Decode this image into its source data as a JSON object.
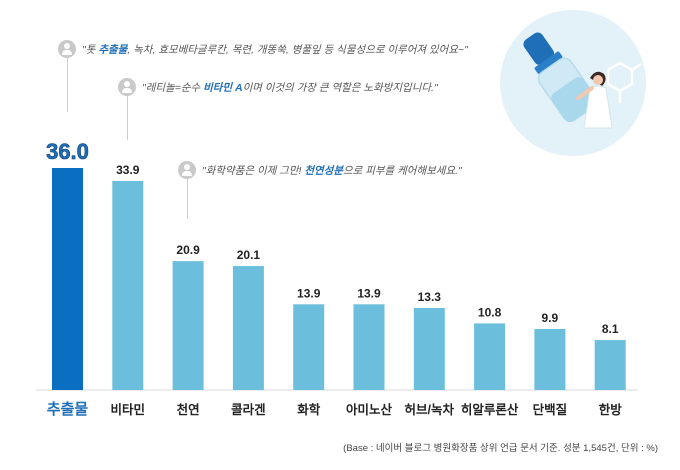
{
  "quotes": [
    {
      "pre": "\"톳 ",
      "highlight": "추출물",
      "post": ", 녹차, 효모베타글루칸, 목련, 개똥쑥, 병풀잎 등 식물성으로 이루어져 있어요~\""
    },
    {
      "pre": "\"레티놀=순수 ",
      "highlight": "비타민 A",
      "post": "이며 이것의 가장 큰 역할은 노화방지입니다.\""
    },
    {
      "pre": "\"화학약품은 이제 그만! ",
      "highlight": "천연성분",
      "post": "으로 피부를 케어해보세요.\""
    }
  ],
  "footnote": "(Base : 네이버 블로그 병원화장품 상위 언급 문서 기준. 성분 1,545건, 단위 : %)",
  "colors": {
    "highlight_bar": "#0b6fc1",
    "bar": "#6cbfdc",
    "highlight_text": "#1f6fb8"
  },
  "chart_data": {
    "type": "bar",
    "categories": [
      "추출물",
      "비타민",
      "천연",
      "콜라겐",
      "화학",
      "아미노산",
      "허브/녹차",
      "히알루론산",
      "단백질",
      "한방"
    ],
    "values": [
      36.0,
      33.9,
      20.9,
      20.1,
      13.9,
      13.9,
      13.3,
      10.8,
      9.9,
      8.1
    ],
    "value_labels": [
      "36.0",
      "33.9",
      "20.9",
      "20.1",
      "13.9",
      "13.9",
      "13.3",
      "10.8",
      "9.9",
      "8.1"
    ],
    "highlight_index": 0,
    "ylim": [
      0,
      36.0
    ]
  }
}
